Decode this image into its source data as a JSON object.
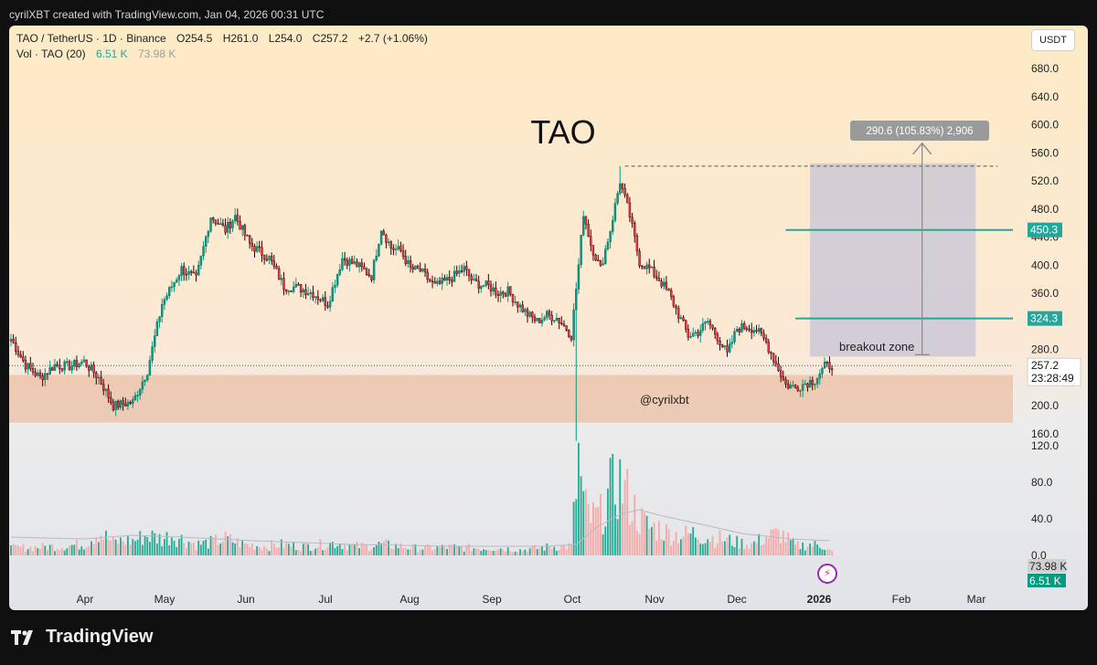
{
  "header": {
    "text": "cyrilXBT created with TradingView.com, Jan 04, 2026 00:31 UTC"
  },
  "legend": {
    "symbol": "TAO / TetherUS · 1D · Binance",
    "open": "O254.5",
    "high": "H261.0",
    "low": "L254.0",
    "close": "C257.2",
    "change": "+2.7 (+1.06%)",
    "vol_label": "Vol · TAO (20)",
    "vol_value": "6.51 K",
    "vol_ma": "73.98 K"
  },
  "currency_button": "USDT",
  "footer": {
    "brand": "TradingView"
  },
  "chart_data": {
    "type": "candlestick",
    "title": "TAO",
    "watermark": "@cyrilxbt",
    "y_axis": {
      "range": [
        130,
        720
      ],
      "ticks": [
        "680.0",
        "640.0",
        "600.0",
        "560.0",
        "520.0",
        "480.0",
        "440.0",
        "400.0",
        "360.0",
        "320.0",
        "280.0",
        "240.0",
        "200.0",
        "160.0"
      ]
    },
    "volume_axis": {
      "range": [
        0,
        140
      ],
      "ticks": [
        "120.0",
        "80.0",
        "40.0",
        "0.0"
      ],
      "ma_label": "73.98 K",
      "current_label": "6.51 K"
    },
    "x_axis": {
      "ticks": [
        "Apr",
        "May",
        "Jun",
        "Jul",
        "Aug",
        "Sep",
        "Oct",
        "Nov",
        "Dec",
        "2026",
        "Feb",
        "Mar"
      ]
    },
    "last_price": {
      "value": 257.2,
      "label": "257.2",
      "countdown": "23:28:49"
    },
    "support_zone": {
      "from": 176,
      "to": 244
    },
    "lines": [
      {
        "value": 450.3,
        "label": "450.3",
        "color": "#26a69a"
      },
      {
        "value": 324.3,
        "label": "324.3",
        "color": "#26a69a"
      }
    ],
    "projection": {
      "from": 270,
      "to": 545,
      "label": "290.6 (105.83%) 2,906",
      "zone_label": "breakout zone"
    },
    "dashed_high": 541,
    "volume_ma_level": 20,
    "price_path": [
      [
        0,
        295
      ],
      [
        6,
        258
      ],
      [
        12,
        240
      ],
      [
        18,
        258
      ],
      [
        24,
        256
      ],
      [
        30,
        263
      ],
      [
        36,
        240
      ],
      [
        42,
        200
      ],
      [
        50,
        205
      ],
      [
        56,
        250
      ],
      [
        62,
        345
      ],
      [
        70,
        395
      ],
      [
        76,
        380
      ],
      [
        82,
        470
      ],
      [
        88,
        450
      ],
      [
        92,
        470
      ],
      [
        98,
        430
      ],
      [
        106,
        410
      ],
      [
        112,
        370
      ],
      [
        118,
        368
      ],
      [
        124,
        360
      ],
      [
        130,
        345
      ],
      [
        136,
        410
      ],
      [
        142,
        400
      ],
      [
        148,
        385
      ],
      [
        152,
        453
      ],
      [
        156,
        425
      ],
      [
        160,
        420
      ],
      [
        164,
        395
      ],
      [
        168,
        392
      ],
      [
        174,
        370
      ],
      [
        180,
        380
      ],
      [
        186,
        395
      ],
      [
        190,
        375
      ],
      [
        196,
        370
      ],
      [
        200,
        361
      ],
      [
        204,
        363
      ],
      [
        208,
        345
      ],
      [
        212,
        330
      ],
      [
        216,
        320
      ],
      [
        220,
        329
      ],
      [
        224,
        325
      ],
      [
        228,
        310
      ],
      [
        230,
        300
      ],
      [
        233,
        400
      ],
      [
        235,
        475
      ],
      [
        238,
        430
      ],
      [
        242,
        395
      ],
      [
        246,
        450
      ],
      [
        250,
        520
      ],
      [
        254,
        470
      ],
      [
        258,
        405
      ],
      [
        262,
        395
      ],
      [
        266,
        380
      ],
      [
        270,
        360
      ],
      [
        274,
        330
      ],
      [
        278,
        300
      ],
      [
        282,
        305
      ],
      [
        286,
        320
      ],
      [
        290,
        298
      ],
      [
        294,
        273
      ],
      [
        298,
        310
      ],
      [
        302,
        313
      ],
      [
        306,
        308
      ],
      [
        310,
        290
      ],
      [
        314,
        260
      ],
      [
        318,
        230
      ],
      [
        322,
        226
      ],
      [
        326,
        232
      ],
      [
        330,
        237
      ],
      [
        334,
        256
      ],
      [
        337,
        258
      ]
    ],
    "volume_path": [
      [
        0,
        8
      ],
      [
        10,
        9
      ],
      [
        20,
        10
      ],
      [
        30,
        12
      ],
      [
        36,
        26
      ],
      [
        42,
        14
      ],
      [
        46,
        16
      ],
      [
        50,
        16
      ],
      [
        56,
        22
      ],
      [
        62,
        18
      ],
      [
        66,
        22
      ],
      [
        70,
        18
      ],
      [
        76,
        12
      ],
      [
        82,
        14
      ],
      [
        88,
        18
      ],
      [
        96,
        12
      ],
      [
        104,
        10
      ],
      [
        110,
        12
      ],
      [
        120,
        10
      ],
      [
        128,
        12
      ],
      [
        134,
        14
      ],
      [
        140,
        10
      ],
      [
        146,
        10
      ],
      [
        152,
        12
      ],
      [
        160,
        10
      ],
      [
        166,
        8
      ],
      [
        172,
        8
      ],
      [
        180,
        9
      ],
      [
        190,
        8
      ],
      [
        200,
        8
      ],
      [
        210,
        6
      ],
      [
        220,
        9
      ],
      [
        226,
        10
      ],
      [
        230,
        10
      ],
      [
        233,
        105
      ],
      [
        235,
        55
      ],
      [
        238,
        40
      ],
      [
        242,
        44
      ],
      [
        246,
        70
      ],
      [
        250,
        80
      ],
      [
        254,
        60
      ],
      [
        258,
        40
      ],
      [
        262,
        30
      ],
      [
        266,
        30
      ],
      [
        270,
        24
      ],
      [
        276,
        22
      ],
      [
        280,
        24
      ],
      [
        286,
        20
      ],
      [
        292,
        18
      ],
      [
        298,
        14
      ],
      [
        304,
        12
      ],
      [
        310,
        20
      ],
      [
        316,
        24
      ],
      [
        322,
        10
      ],
      [
        328,
        12
      ],
      [
        334,
        10
      ],
      [
        337,
        4
      ]
    ],
    "volume_ma_path": [
      [
        0,
        20
      ],
      [
        30,
        18
      ],
      [
        40,
        20
      ],
      [
        50,
        22
      ],
      [
        70,
        20
      ],
      [
        100,
        16
      ],
      [
        140,
        12
      ],
      [
        180,
        10
      ],
      [
        220,
        10
      ],
      [
        232,
        12
      ],
      [
        240,
        30
      ],
      [
        250,
        45
      ],
      [
        258,
        50
      ],
      [
        266,
        44
      ],
      [
        280,
        36
      ],
      [
        300,
        24
      ],
      [
        320,
        18
      ],
      [
        337,
        16
      ]
    ]
  }
}
